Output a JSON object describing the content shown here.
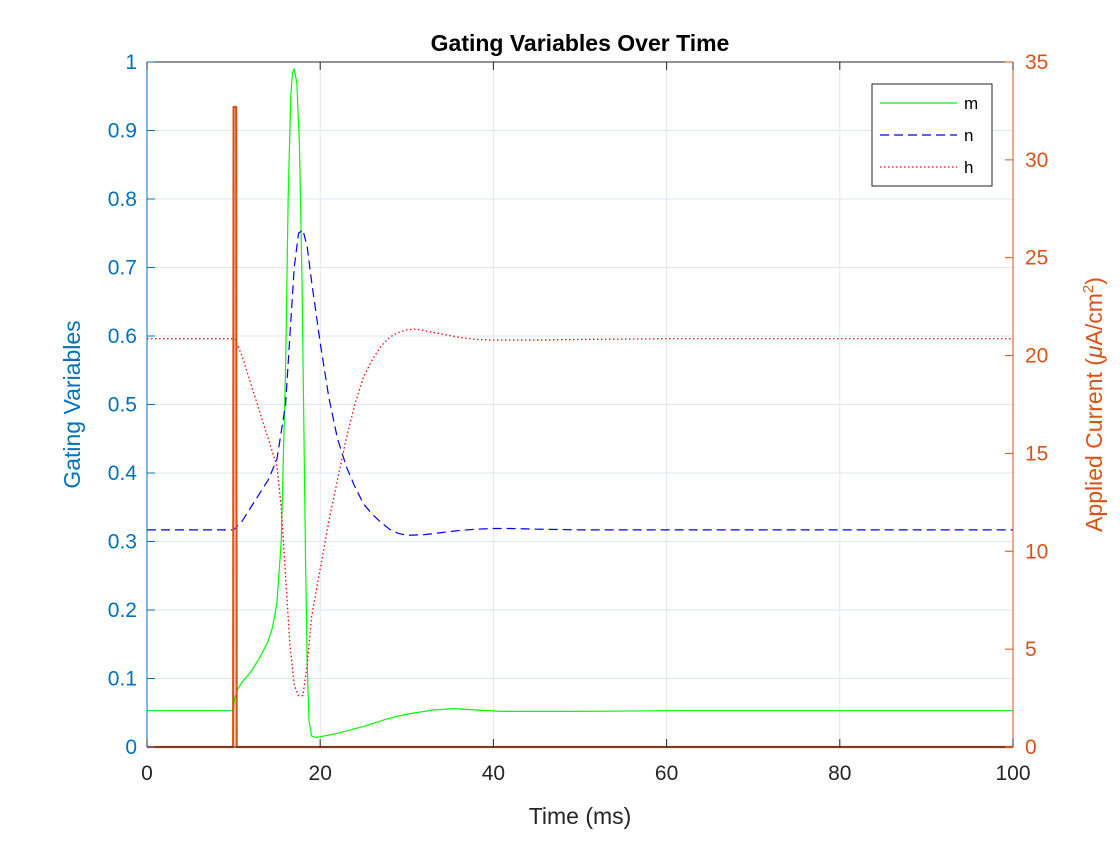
{
  "chart_data": {
    "type": "line",
    "title": "Gating Variables Over Time",
    "xlabel": "Time (ms)",
    "ylabel_left": "Gating Variables",
    "ylabel_right_prefix": "Applied Current (",
    "ylabel_right_mu": "μ",
    "ylabel_right_unit": "A/cm",
    "ylabel_right_sup": "2",
    "ylabel_right_suffix": ")",
    "xlim": [
      0,
      100
    ],
    "ylim_left": [
      0,
      1
    ],
    "ylim_right": [
      0,
      35
    ],
    "x_ticks": [
      "0",
      "20",
      "40",
      "60",
      "80",
      "100"
    ],
    "y_left_ticks": [
      "0",
      "0.1",
      "0.2",
      "0.3",
      "0.4",
      "0.5",
      "0.6",
      "0.7",
      "0.8",
      "0.9",
      "1"
    ],
    "y_right_ticks": [
      "0",
      "5",
      "10",
      "15",
      "20",
      "25",
      "30",
      "35"
    ],
    "grid": true,
    "legend_position": "top-right",
    "colors": {
      "left_axis": "#0072BD",
      "right_axis": "#D95319",
      "m": "#00FF00",
      "n": "#0000FF",
      "h": "#FF0000",
      "grid": "#dfe6ee"
    },
    "series": [
      {
        "name": "m",
        "axis": "left",
        "style": "solid",
        "x": [
          0,
          10,
          10.1,
          10.5,
          11,
          12,
          13,
          14,
          14.5,
          15,
          15.5,
          16,
          16.3,
          16.6,
          16.8,
          17,
          17.3,
          17.6,
          17.9,
          18.1,
          18.3,
          18.5,
          18.7,
          19,
          19.5,
          20,
          22,
          25,
          28,
          30,
          33,
          35.5,
          38,
          41,
          45,
          50,
          60,
          80,
          100
        ],
        "y": [
          0.053,
          0.053,
          0.07,
          0.085,
          0.095,
          0.11,
          0.13,
          0.155,
          0.175,
          0.21,
          0.3,
          0.55,
          0.8,
          0.95,
          0.985,
          0.99,
          0.97,
          0.88,
          0.68,
          0.48,
          0.28,
          0.12,
          0.04,
          0.016,
          0.014,
          0.015,
          0.02,
          0.03,
          0.042,
          0.048,
          0.054,
          0.056,
          0.054,
          0.052,
          0.052,
          0.052,
          0.053,
          0.053,
          0.053
        ]
      },
      {
        "name": "n",
        "axis": "left",
        "style": "dashed",
        "x": [
          0,
          10,
          11,
          12,
          13,
          14,
          15,
          16,
          16.5,
          17,
          17.5,
          18,
          18.5,
          19,
          20,
          21,
          22,
          23,
          24,
          25,
          26,
          27,
          28,
          29,
          30,
          32,
          34,
          36,
          38,
          40,
          42,
          45,
          50,
          60,
          80,
          100
        ],
        "y": [
          0.317,
          0.317,
          0.33,
          0.35,
          0.37,
          0.39,
          0.42,
          0.5,
          0.6,
          0.7,
          0.75,
          0.755,
          0.73,
          0.68,
          0.59,
          0.51,
          0.45,
          0.41,
          0.38,
          0.355,
          0.34,
          0.328,
          0.318,
          0.312,
          0.309,
          0.31,
          0.313,
          0.316,
          0.318,
          0.319,
          0.319,
          0.318,
          0.317,
          0.317,
          0.317,
          0.317
        ]
      },
      {
        "name": "h",
        "axis": "left",
        "style": "dotted",
        "x": [
          0,
          10,
          10.2,
          11,
          12,
          13,
          14,
          15,
          15.5,
          16,
          16.5,
          17,
          17.5,
          18,
          18.5,
          19,
          20,
          21,
          22,
          23,
          24,
          25,
          26,
          27,
          28,
          29,
          30,
          31,
          32,
          34,
          36,
          38,
          40,
          45,
          50,
          60,
          80,
          100
        ],
        "y": [
          0.596,
          0.596,
          0.595,
          0.57,
          0.53,
          0.49,
          0.45,
          0.41,
          0.35,
          0.25,
          0.15,
          0.09,
          0.075,
          0.075,
          0.12,
          0.19,
          0.26,
          0.33,
          0.39,
          0.45,
          0.5,
          0.54,
          0.565,
          0.585,
          0.598,
          0.605,
          0.609,
          0.61,
          0.608,
          0.603,
          0.598,
          0.595,
          0.594,
          0.594,
          0.595,
          0.596,
          0.596,
          0.596
        ]
      },
      {
        "name": "Applied Current",
        "axis": "right",
        "style": "solid",
        "x": [
          0,
          9.95,
          10,
          10.05,
          10.3,
          10.35,
          100
        ],
        "y": [
          0,
          0,
          32.7,
          32.7,
          32.7,
          0,
          0
        ]
      }
    ]
  }
}
